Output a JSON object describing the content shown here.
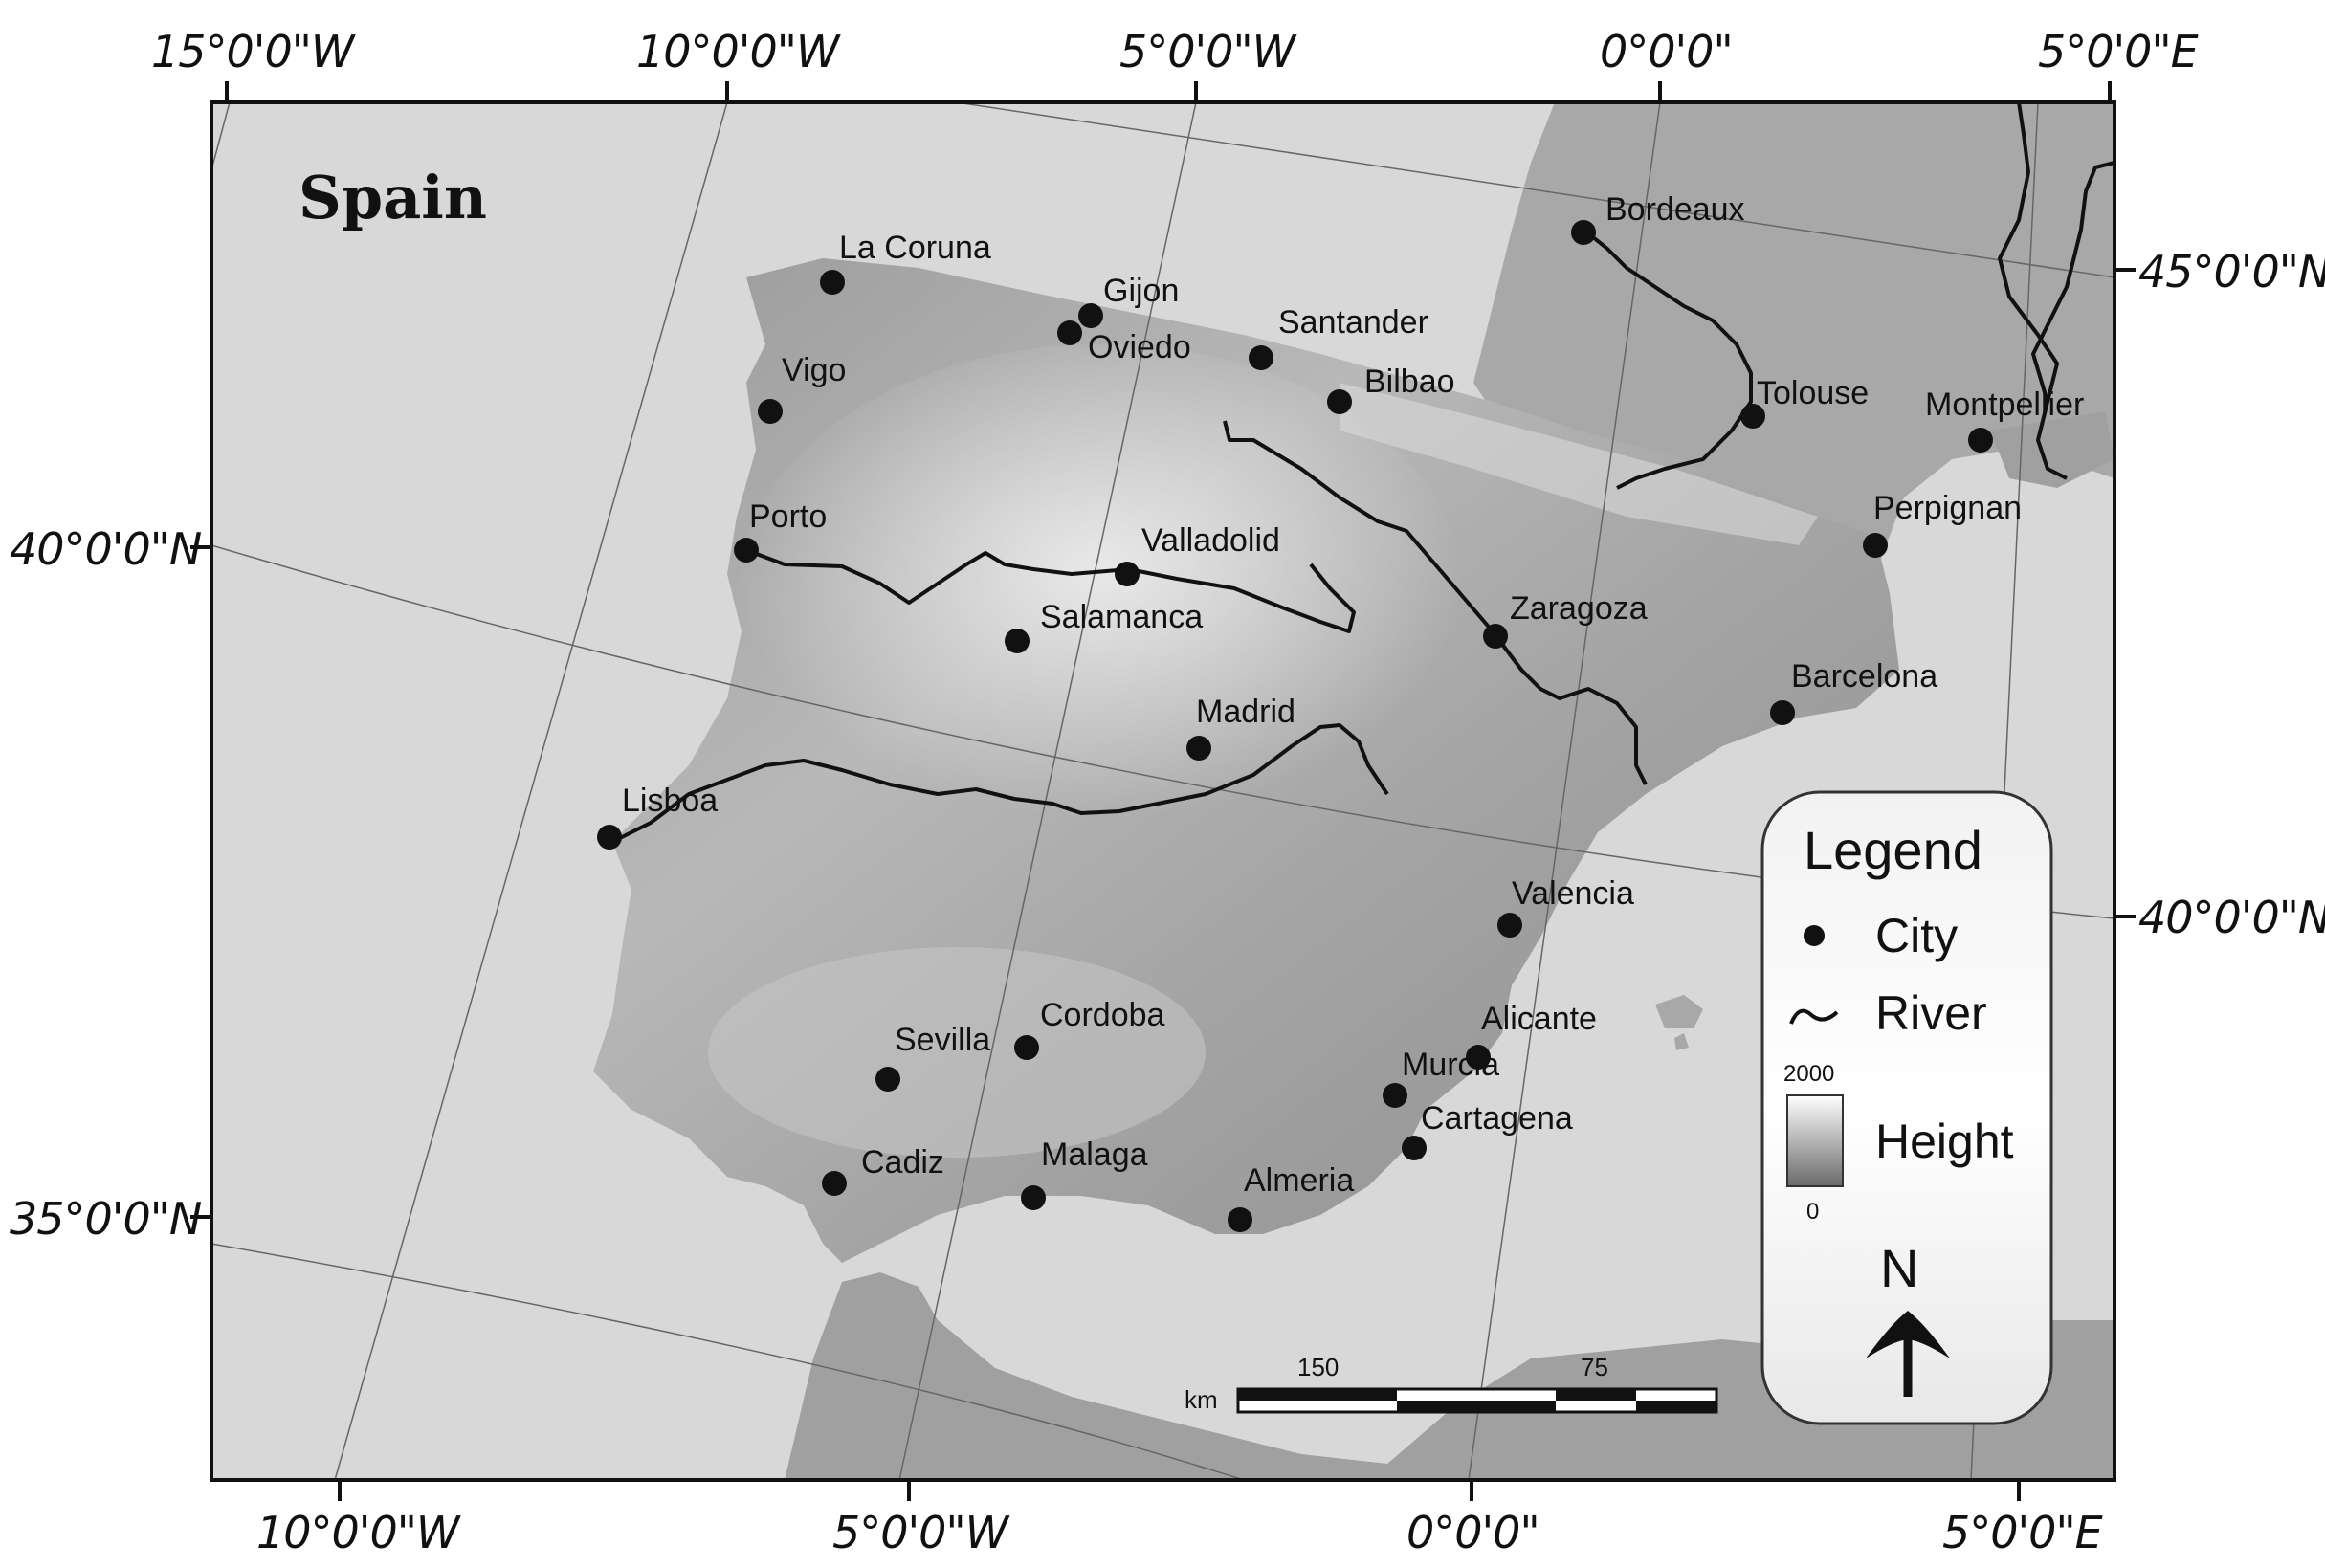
{
  "map": {
    "title": "Spain",
    "top_labels": [
      "15°0'0\"W",
      "10°0'0\"W",
      "5°0'0\"W",
      "0°0'0\"",
      "5°0'0\"E"
    ],
    "bottom_labels": [
      "10°0'0\"W",
      "5°0'0\"W",
      "0°0'0\"",
      "5°0'0\"E"
    ],
    "left_labels": [
      "40°0'0\"N",
      "35°0'0\"N"
    ],
    "right_labels": [
      "45°0'0\"N",
      "40°0'0\"N"
    ],
    "cities": [
      {
        "name": "La Coruna"
      },
      {
        "name": "Gijon"
      },
      {
        "name": "Oviedo"
      },
      {
        "name": "Santander"
      },
      {
        "name": "Bilbao"
      },
      {
        "name": "Bordeaux"
      },
      {
        "name": "Vigo"
      },
      {
        "name": "Tolouse"
      },
      {
        "name": "Montpellier"
      },
      {
        "name": "Porto"
      },
      {
        "name": "Valladolid"
      },
      {
        "name": "Perpignan"
      },
      {
        "name": "Salamanca"
      },
      {
        "name": "Zaragoza"
      },
      {
        "name": "Barcelona"
      },
      {
        "name": "Madrid"
      },
      {
        "name": "Lisboa"
      },
      {
        "name": "Valencia"
      },
      {
        "name": "Alicante"
      },
      {
        "name": "Cordoba"
      },
      {
        "name": "Sevilla"
      },
      {
        "name": "Murcia"
      },
      {
        "name": "Cartagena"
      },
      {
        "name": "Cadiz"
      },
      {
        "name": "Malaga"
      },
      {
        "name": "Almeria"
      }
    ]
  },
  "legend": {
    "title": "Legend",
    "city": "City",
    "river": "River",
    "height_max": "2000",
    "height_min": "0",
    "height": "Height",
    "north": "N"
  },
  "scale": {
    "unit": "km",
    "label_150": "150",
    "label_75": "75"
  },
  "colors": {
    "sea": "#d6d6d6",
    "land_light": "#e4e4e4",
    "land_dark": "#8a8a8a",
    "frame": "#111111"
  }
}
